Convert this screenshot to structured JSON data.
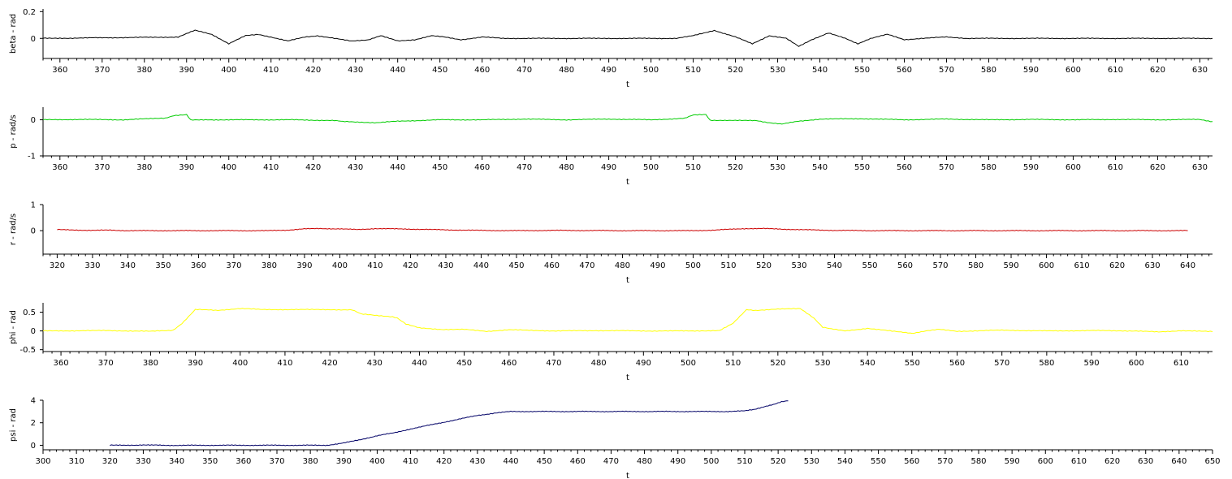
{
  "chart_data": [
    {
      "type": "line",
      "xlabel": "t",
      "ylabel": "beta - rad",
      "xlim": [
        356,
        633
      ],
      "ylim": [
        -0.15,
        0.22
      ],
      "xticks": [
        360,
        370,
        380,
        390,
        400,
        410,
        420,
        430,
        440,
        450,
        460,
        470,
        480,
        490,
        500,
        510,
        520,
        530,
        540,
        550,
        560,
        570,
        580,
        590,
        600,
        610,
        620,
        630
      ],
      "yticks": [
        0,
        0.2
      ],
      "ytick_labels": [
        "0",
        "0.2"
      ],
      "color": "#000000",
      "series": [
        {
          "x": [
            356,
            388,
            392,
            396,
            400,
            404,
            407,
            410,
            414,
            418,
            421,
            425,
            429,
            433,
            436,
            440,
            444,
            448,
            451,
            455,
            460,
            465,
            470,
            480,
            490,
            500,
            506,
            510,
            515,
            520,
            524,
            528,
            532,
            535,
            538,
            542,
            546,
            549,
            552,
            556,
            560,
            564,
            570,
            575,
            580,
            590,
            600,
            610,
            620,
            633
          ],
          "y": [
            0,
            0.01,
            0.06,
            0.03,
            -0.04,
            0.02,
            0.03,
            0.01,
            -0.02,
            0.01,
            0.02,
            0.0,
            -0.02,
            -0.01,
            0.02,
            -0.02,
            -0.01,
            0.02,
            0.01,
            -0.01,
            0.01,
            0.0,
            0.0,
            0.0,
            0.0,
            0.0,
            0.0,
            0.02,
            0.06,
            0.01,
            -0.04,
            0.02,
            0.0,
            -0.06,
            -0.01,
            0.04,
            0.0,
            -0.04,
            0.0,
            0.03,
            -0.01,
            0.0,
            0.01,
            0.0,
            0.0,
            0.0,
            0.0,
            0.0,
            0.0,
            0.0
          ]
        }
      ]
    },
    {
      "type": "line",
      "xlabel": "t",
      "ylabel": "p - rad/s",
      "xlim": [
        356,
        633
      ],
      "ylim": [
        -1,
        0.35
      ],
      "xticks": [
        360,
        370,
        380,
        390,
        400,
        410,
        420,
        430,
        440,
        450,
        460,
        470,
        480,
        490,
        500,
        510,
        520,
        530,
        540,
        550,
        560,
        570,
        580,
        590,
        600,
        610,
        620,
        630
      ],
      "yticks": [
        -1,
        0
      ],
      "ytick_labels": [
        "-1",
        "0"
      ],
      "color": "#00cc00",
      "series": [
        {
          "x": [
            356,
            365,
            375,
            385,
            387,
            390,
            391,
            395,
            405,
            415,
            425,
            427,
            430,
            435,
            440,
            450,
            460,
            470,
            480,
            490,
            500,
            508,
            510,
            513,
            514,
            520,
            525,
            528,
            531,
            535,
            540,
            550,
            560,
            570,
            580,
            590,
            600,
            610,
            620,
            630,
            633
          ],
          "y": [
            0.0,
            0.01,
            0.0,
            0.05,
            0.12,
            0.14,
            -0.01,
            0.0,
            0.0,
            0.0,
            -0.02,
            -0.05,
            -0.06,
            -0.08,
            -0.04,
            0.0,
            0.0,
            0.02,
            0.0,
            0.02,
            0.0,
            0.04,
            0.13,
            0.15,
            -0.01,
            -0.02,
            -0.02,
            -0.08,
            -0.12,
            -0.04,
            0.02,
            0.03,
            0.0,
            0.02,
            0.0,
            0.01,
            0.0,
            0.01,
            0.0,
            0.01,
            -0.05
          ]
        }
      ]
    },
    {
      "type": "line",
      "xlabel": "t",
      "ylabel": "r - rad/s",
      "xlim": [
        316,
        647
      ],
      "ylim": [
        -0.9,
        1
      ],
      "xticks": [
        320,
        330,
        340,
        350,
        360,
        370,
        380,
        390,
        400,
        410,
        420,
        430,
        440,
        450,
        460,
        470,
        480,
        490,
        500,
        510,
        520,
        530,
        540,
        550,
        560,
        570,
        580,
        590,
        600,
        610,
        620,
        630,
        640
      ],
      "yticks": [
        0,
        1
      ],
      "ytick_labels": [
        "0",
        "1"
      ],
      "color": "#cc0000",
      "series": [
        {
          "x": [
            320,
            330,
            335,
            340,
            350,
            380,
            385,
            390,
            395,
            400,
            405,
            410,
            420,
            430,
            440,
            450,
            460,
            480,
            500,
            506,
            510,
            515,
            520,
            530,
            540,
            550,
            560,
            580,
            600,
            620,
            640
          ],
          "y": [
            0.04,
            0.01,
            0.02,
            0.0,
            0.0,
            0.0,
            0.02,
            0.07,
            0.08,
            0.07,
            0.04,
            0.08,
            0.06,
            0.03,
            0.01,
            0.0,
            0.01,
            0.0,
            0.0,
            0.02,
            0.05,
            0.08,
            0.08,
            0.04,
            0.01,
            0.0,
            0.0,
            0.0,
            0.0,
            0.0,
            0.0
          ]
        }
      ]
    },
    {
      "type": "line",
      "xlabel": "t",
      "ylabel": "phi - rad",
      "xlim": [
        356,
        617
      ],
      "ylim": [
        -0.55,
        0.75
      ],
      "xticks": [
        360,
        370,
        380,
        390,
        400,
        410,
        420,
        430,
        440,
        450,
        460,
        470,
        480,
        490,
        500,
        510,
        520,
        530,
        540,
        550,
        560,
        570,
        580,
        590,
        600,
        610
      ],
      "yticks": [
        -0.5,
        0,
        0.5
      ],
      "ytick_labels": [
        "-0.5",
        "0",
        "0.5"
      ],
      "color": "#ffff00",
      "series": [
        {
          "x": [
            356,
            370,
            380,
            385,
            387,
            390,
            395,
            400,
            405,
            410,
            420,
            425,
            427,
            430,
            434,
            435,
            437,
            440,
            445,
            450,
            455,
            460,
            470,
            480,
            490,
            500,
            507,
            510,
            513,
            515,
            520,
            525,
            528,
            530,
            532,
            535,
            540,
            545,
            550,
            553,
            556,
            560,
            570,
            580,
            590,
            600,
            605,
            610,
            617
          ],
          "y": [
            0.0,
            0.01,
            -0.01,
            0.02,
            0.2,
            0.57,
            0.55,
            0.6,
            0.57,
            0.57,
            0.57,
            0.56,
            0.45,
            0.42,
            0.38,
            0.35,
            0.18,
            0.08,
            0.04,
            0.04,
            -0.01,
            0.03,
            0.0,
            0.01,
            0.0,
            0.0,
            0.01,
            0.2,
            0.57,
            0.55,
            0.58,
            0.6,
            0.35,
            0.1,
            0.05,
            0.0,
            0.07,
            0.0,
            -0.06,
            0.0,
            0.04,
            -0.01,
            0.02,
            0.0,
            0.01,
            0.0,
            -0.03,
            0.01,
            -0.02
          ]
        }
      ]
    },
    {
      "type": "line",
      "xlabel": "t",
      "ylabel": "psi - rad",
      "xlim": [
        300,
        650
      ],
      "ylim": [
        -0.4,
        4
      ],
      "xticks": [
        300,
        310,
        320,
        330,
        340,
        350,
        360,
        370,
        380,
        390,
        400,
        410,
        420,
        430,
        440,
        450,
        460,
        470,
        480,
        490,
        500,
        510,
        520,
        530,
        540,
        550,
        560,
        570,
        580,
        590,
        600,
        610,
        620,
        630,
        640,
        650
      ],
      "yticks": [
        0,
        2,
        4
      ],
      "ytick_labels": [
        "0",
        "2",
        "4"
      ],
      "color": "#000066",
      "series": [
        {
          "x": [
            320,
            330,
            340,
            350,
            360,
            370,
            380,
            385,
            390,
            395,
            400,
            405,
            410,
            415,
            420,
            425,
            430,
            435,
            440,
            450,
            460,
            470,
            480,
            490,
            500,
            505,
            510,
            513,
            516,
            519,
            521,
            523
          ],
          "y": [
            0.0,
            0.02,
            -0.01,
            0.0,
            0.0,
            0.0,
            0.0,
            0.0,
            0.2,
            0.5,
            0.85,
            1.1,
            1.45,
            1.75,
            2.05,
            2.35,
            2.65,
            2.85,
            3.0,
            3.0,
            3.0,
            3.0,
            3.0,
            3.0,
            3.0,
            3.0,
            3.05,
            3.2,
            3.45,
            3.65,
            3.85,
            3.95
          ]
        }
      ]
    }
  ]
}
